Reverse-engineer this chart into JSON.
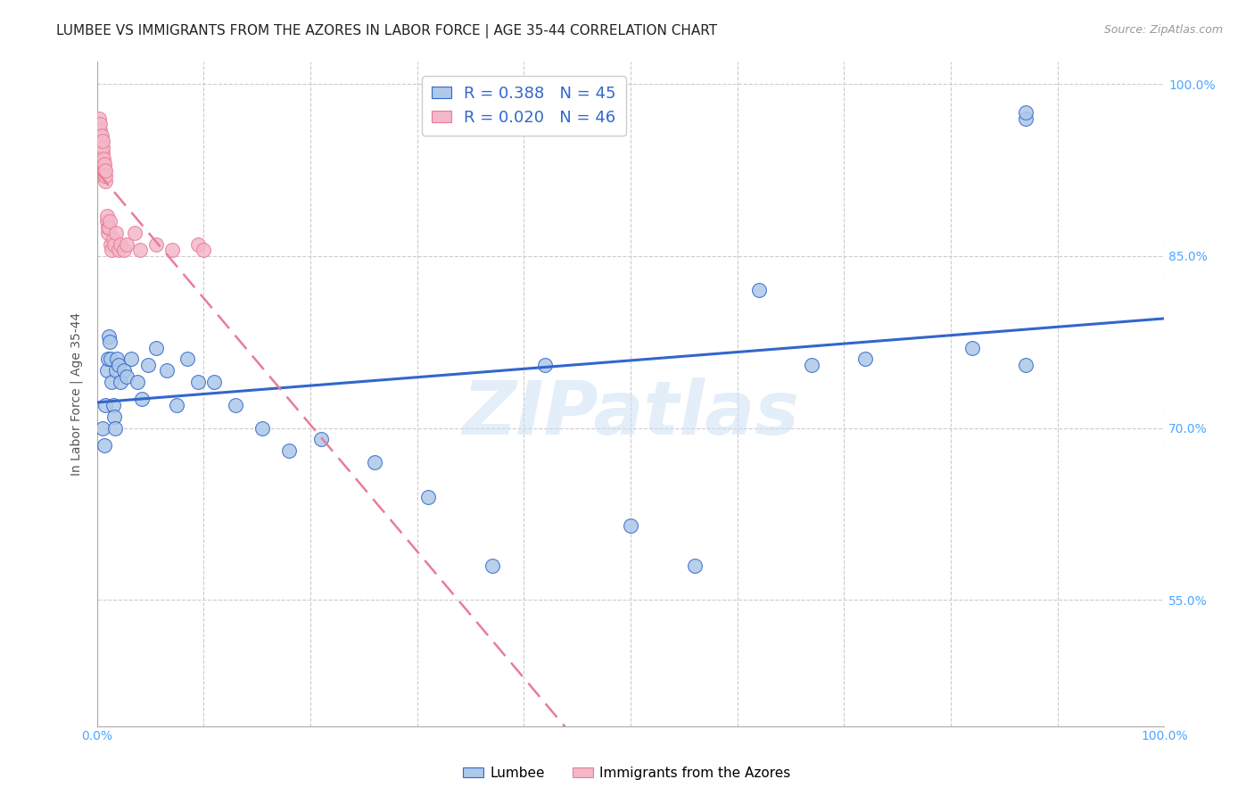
{
  "title": "LUMBEE VS IMMIGRANTS FROM THE AZORES IN LABOR FORCE | AGE 35-44 CORRELATION CHART",
  "source": "Source: ZipAtlas.com",
  "ylabel": "In Labor Force | Age 35-44",
  "r_lumbee": 0.388,
  "n_lumbee": 45,
  "r_azores": 0.02,
  "n_azores": 46,
  "lumbee_color": "#adc8e8",
  "azores_color": "#f4b8c8",
  "lumbee_line_color": "#3366cc",
  "azores_line_color": "#e87d96",
  "legend_label_lumbee": "Lumbee",
  "legend_label_azores": "Immigrants from the Azores",
  "watermark_text": "ZIPatlas",
  "lumbee_x": [
    0.005,
    0.007,
    0.008,
    0.009,
    0.01,
    0.011,
    0.012,
    0.013,
    0.014,
    0.015,
    0.016,
    0.017,
    0.018,
    0.019,
    0.02,
    0.022,
    0.025,
    0.028,
    0.032,
    0.038,
    0.042,
    0.048,
    0.055,
    0.065,
    0.075,
    0.085,
    0.095,
    0.11,
    0.13,
    0.155,
    0.18,
    0.21,
    0.26,
    0.31,
    0.37,
    0.42,
    0.5,
    0.56,
    0.62,
    0.67,
    0.72,
    0.82,
    0.87,
    0.87,
    0.87
  ],
  "lumbee_y": [
    0.7,
    0.685,
    0.72,
    0.75,
    0.76,
    0.78,
    0.775,
    0.76,
    0.74,
    0.72,
    0.71,
    0.7,
    0.75,
    0.76,
    0.755,
    0.74,
    0.75,
    0.745,
    0.76,
    0.74,
    0.725,
    0.755,
    0.77,
    0.75,
    0.72,
    0.76,
    0.74,
    0.74,
    0.72,
    0.7,
    0.68,
    0.69,
    0.67,
    0.64,
    0.58,
    0.755,
    0.615,
    0.58,
    0.82,
    0.755,
    0.76,
    0.77,
    0.755,
    0.97,
    0.975
  ],
  "azores_x": [
    0.002,
    0.002,
    0.003,
    0.003,
    0.003,
    0.003,
    0.003,
    0.004,
    0.004,
    0.004,
    0.004,
    0.005,
    0.005,
    0.005,
    0.005,
    0.005,
    0.006,
    0.006,
    0.006,
    0.007,
    0.007,
    0.007,
    0.008,
    0.008,
    0.008,
    0.009,
    0.009,
    0.01,
    0.01,
    0.011,
    0.012,
    0.013,
    0.014,
    0.015,
    0.016,
    0.018,
    0.02,
    0.022,
    0.025,
    0.028,
    0.035,
    0.04,
    0.055,
    0.07,
    0.095,
    0.1
  ],
  "azores_y": [
    0.97,
    0.95,
    0.935,
    0.95,
    0.955,
    0.96,
    0.965,
    0.94,
    0.945,
    0.95,
    0.955,
    0.93,
    0.935,
    0.94,
    0.945,
    0.95,
    0.925,
    0.93,
    0.935,
    0.92,
    0.925,
    0.93,
    0.915,
    0.92,
    0.925,
    0.88,
    0.885,
    0.87,
    0.875,
    0.875,
    0.88,
    0.86,
    0.855,
    0.865,
    0.86,
    0.87,
    0.855,
    0.86,
    0.855,
    0.86,
    0.87,
    0.855,
    0.86,
    0.855,
    0.86,
    0.855
  ],
  "xlim": [
    0.0,
    1.0
  ],
  "ylim": [
    0.44,
    1.02
  ],
  "y_tick_vals": [
    0.55,
    0.7,
    0.85,
    1.0
  ],
  "y_tick_labels": [
    "55.0%",
    "70.0%",
    "85.0%",
    "100.0%"
  ],
  "x_tick_vals": [
    0.0,
    0.1,
    0.2,
    0.3,
    0.4,
    0.5,
    0.6,
    0.7,
    0.8,
    0.9,
    1.0
  ],
  "x_tick_labels": [
    "0.0%",
    "",
    "",
    "",
    "",
    "",
    "",
    "",
    "",
    "",
    "100.0%"
  ],
  "grid_color": "#cccccc",
  "background_color": "#ffffff",
  "title_fontsize": 11,
  "source_fontsize": 9,
  "axis_label_fontsize": 10,
  "tick_fontsize": 10,
  "tick_color": "#4da6ff"
}
